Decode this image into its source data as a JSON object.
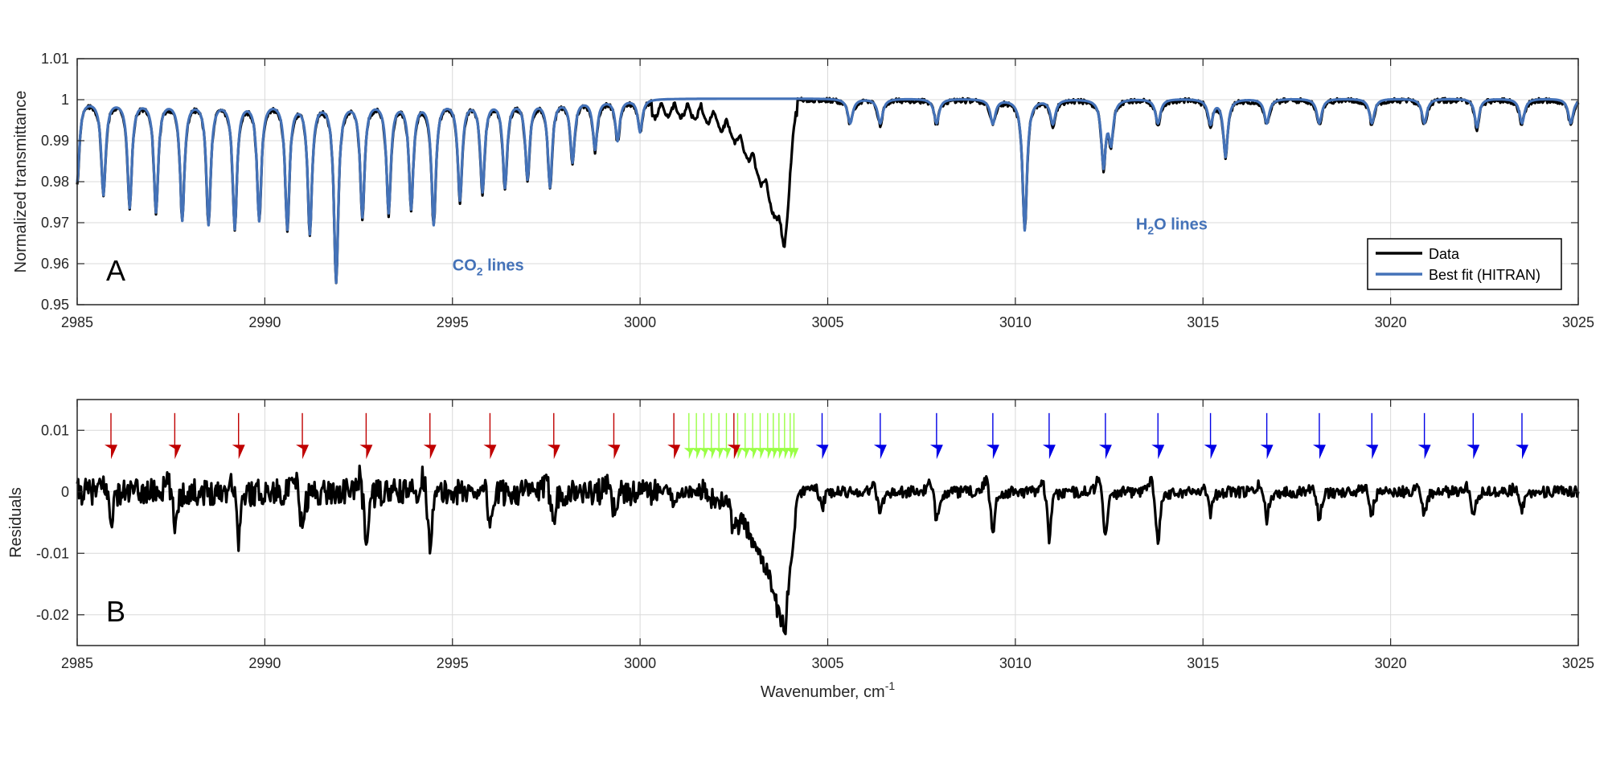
{
  "colors": {
    "data": "#000000",
    "fit": "#4472b8",
    "co2_arrows": "#c00000",
    "h2o_arrows": "#0000e6",
    "green_arrows": "#99ff44",
    "grid": "#d9d9d9",
    "axis": "#262626"
  },
  "chart_data": [
    {
      "type": "line",
      "panel": "A",
      "ylabel": "Normalized transmittance",
      "xlim": [
        2985,
        3025
      ],
      "ylim": [
        0.95,
        1.01
      ],
      "x_ticks": [
        2985,
        2990,
        2995,
        3000,
        3005,
        3010,
        3015,
        3020,
        3025
      ],
      "y_ticks": [
        0.95,
        0.96,
        0.97,
        0.98,
        0.99,
        1,
        1.01
      ],
      "y_tick_labels": [
        "0.95",
        "0.96",
        "0.97",
        "0.98",
        "0.99",
        "1",
        "1.01"
      ],
      "grid": true,
      "legend": {
        "location": "bottom-right",
        "entries": [
          "Data",
          "Best fit (HITRAN)"
        ]
      },
      "annotations": [
        {
          "text": "CO",
          "sub": "2",
          "rest": " lines",
          "x": 2995,
          "y": 0.9597
        },
        {
          "text": "H",
          "sub": "2",
          "rest": "O lines",
          "x": 3013.0,
          "y": 0.9697
        }
      ],
      "series": [
        {
          "name": "Data",
          "baseline": 1.0,
          "co2_lines": [
            {
              "x": 2985.0,
              "depth": 0.02
            },
            {
              "x": 2985.7,
              "depth": 0.023
            },
            {
              "x": 2986.4,
              "depth": 0.026
            },
            {
              "x": 2987.1,
              "depth": 0.027
            },
            {
              "x": 2987.8,
              "depth": 0.029
            },
            {
              "x": 2988.5,
              "depth": 0.03
            },
            {
              "x": 2989.2,
              "depth": 0.031
            },
            {
              "x": 2989.85,
              "depth": 0.029
            },
            {
              "x": 2990.6,
              "depth": 0.031
            },
            {
              "x": 2991.2,
              "depth": 0.032
            },
            {
              "x": 2991.9,
              "depth": 0.044
            },
            {
              "x": 2992.6,
              "depth": 0.028
            },
            {
              "x": 2993.3,
              "depth": 0.027
            },
            {
              "x": 2993.9,
              "depth": 0.026
            },
            {
              "x": 2994.5,
              "depth": 0.03
            },
            {
              "x": 2995.2,
              "depth": 0.024
            },
            {
              "x": 2995.8,
              "depth": 0.022
            },
            {
              "x": 2996.4,
              "depth": 0.021
            },
            {
              "x": 2997.0,
              "depth": 0.019
            },
            {
              "x": 2997.6,
              "depth": 0.021
            },
            {
              "x": 2998.2,
              "depth": 0.015
            },
            {
              "x": 2998.8,
              "depth": 0.012
            },
            {
              "x": 2999.4,
              "depth": 0.01
            },
            {
              "x": 3000.0,
              "depth": 0.008
            }
          ],
          "h2o_lines": [
            {
              "x": 3010.25,
              "depth": 0.032
            },
            {
              "x": 3012.35,
              "depth": 0.016
            },
            {
              "x": 3012.55,
              "depth": 0.01
            },
            {
              "x": 3015.6,
              "depth": 0.014
            },
            {
              "x": 3022.3,
              "depth": 0.007
            }
          ],
          "band_feature": {
            "x_start": 3000.5,
            "x_min": 3003.85,
            "y_min": 0.9675,
            "x_end": 3004.2
          },
          "small_lines_x": [
            3005.6,
            3006.4,
            3007.9,
            3009.4,
            3011.0,
            3013.8,
            3015.2,
            3016.7,
            3018.1,
            3019.5,
            3020.9,
            3023.5,
            3024.8
          ],
          "small_lines_depth": 0.006
        },
        {
          "name": "Best fit (HITRAN)",
          "baseline": 1.0,
          "note_follows_data_except_band": true
        }
      ]
    },
    {
      "type": "line",
      "panel": "B",
      "ylabel": "Residuals",
      "xlabel": "Wavenumber, cm",
      "xlabel_sup": "-1",
      "xlim": [
        2985,
        3025
      ],
      "ylim": [
        -0.025,
        0.015
      ],
      "x_ticks": [
        2985,
        2990,
        2995,
        3000,
        3005,
        3010,
        3015,
        3020,
        3025
      ],
      "y_ticks": [
        -0.02,
        -0.01,
        0,
        0.01
      ],
      "y_tick_labels": [
        "-0.02",
        "-0.01",
        "0",
        "0.01"
      ],
      "grid": true,
      "series": [
        {
          "name": "Residuals",
          "residual_lines_x": [
            2985.9,
            2987.6,
            2989.3,
            2991.0,
            2992.7,
            2994.4,
            2996.0,
            2997.7,
            2999.3,
            3000.9,
            3002.5,
            3004.85,
            3006.4,
            3007.9,
            3009.4,
            3010.9,
            3012.4,
            3013.8,
            3015.2,
            3016.7,
            3018.1,
            3019.5,
            3020.9,
            3022.2,
            3023.5
          ],
          "residual_lines_depth": [
            -0.005,
            -0.006,
            -0.008,
            -0.007,
            -0.009,
            -0.009,
            -0.006,
            -0.004,
            -0.003,
            -0.002,
            -0.003,
            -0.003,
            -0.004,
            -0.005,
            -0.007,
            -0.008,
            -0.008,
            -0.009,
            -0.004,
            -0.005,
            -0.005,
            -0.004,
            -0.004,
            -0.004,
            -0.003
          ],
          "band_feature": {
            "x_start": 3001.0,
            "x_min": 3003.85,
            "y_min": -0.0228,
            "x_end": 3004.2
          }
        }
      ],
      "arrows": {
        "y_top": 0.0128,
        "y_tip": 0.0053,
        "red_x": [
          2985.9,
          2987.6,
          2989.3,
          2991.0,
          2992.7,
          2994.4,
          2996.0,
          2997.7,
          2999.3,
          3000.9,
          3002.5
        ],
        "blue_x": [
          3004.85,
          3006.4,
          3007.9,
          3009.4,
          3010.9,
          3012.4,
          3013.8,
          3015.2,
          3016.7,
          3018.1,
          3019.5,
          3020.9,
          3022.2,
          3023.5
        ],
        "green_x": [
          3001.3,
          3001.5,
          3001.7,
          3001.9,
          3002.1,
          3002.3,
          3002.6,
          3002.8,
          3003.0,
          3003.2,
          3003.4,
          3003.55,
          3003.7,
          3003.85,
          3004.0,
          3004.1
        ]
      }
    }
  ]
}
